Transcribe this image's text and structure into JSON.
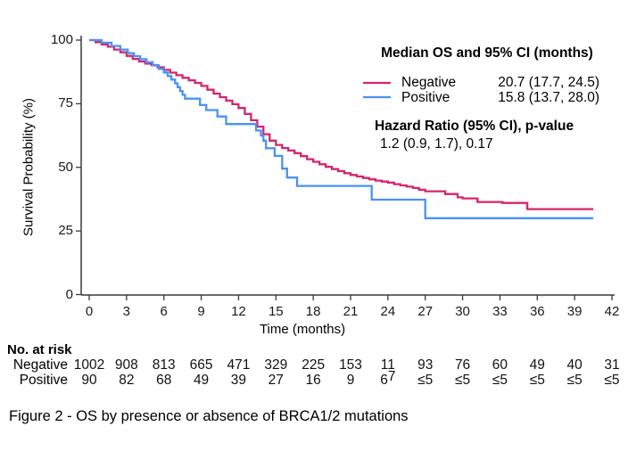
{
  "figure": {
    "caption": "Figure 2 - OS by presence or absence of BRCA1/2 mutations"
  },
  "chart_data": {
    "type": "line",
    "subtype": "kaplan-meier-step",
    "xlabel": "Time (months)",
    "ylabel": "Survival Probability (%)",
    "xlim": [
      0,
      42
    ],
    "ylim": [
      0,
      100
    ],
    "xticks": [
      0,
      3,
      6,
      9,
      12,
      15,
      18,
      21,
      24,
      27,
      30,
      33,
      36,
      39,
      42
    ],
    "yticks": [
      0,
      25,
      50,
      75,
      100
    ],
    "grid": false,
    "axis_color": "#3a3a3a",
    "legend": {
      "position": "top-right",
      "title": "Median OS and 95% CI (months)",
      "hazard_title": "Hazard Ratio (95% CI), p-value",
      "hazard_value": "1.2 (0.9, 1.7), 0.17"
    },
    "series": [
      {
        "name": "Negative",
        "color": "#D5256D",
        "median_os": "20.7 (17.7, 24.5)",
        "points": [
          [
            0,
            100
          ],
          [
            0.5,
            99.2
          ],
          [
            1,
            98.3
          ],
          [
            1.5,
            97.4
          ],
          [
            2,
            96.3
          ],
          [
            2.5,
            95.2
          ],
          [
            3,
            93.8
          ],
          [
            3.5,
            92.6
          ],
          [
            4,
            91.6
          ],
          [
            4.5,
            90.8
          ],
          [
            5,
            90.2
          ],
          [
            5.5,
            89.3
          ],
          [
            6,
            88.3
          ],
          [
            6.5,
            87.2
          ],
          [
            7,
            86.2
          ],
          [
            7.5,
            85.2
          ],
          [
            8,
            84.2
          ],
          [
            8.5,
            83.2
          ],
          [
            9,
            82
          ],
          [
            9.5,
            80.5
          ],
          [
            10,
            79
          ],
          [
            10.5,
            77.6
          ],
          [
            11,
            76.2
          ],
          [
            11.5,
            74.8
          ],
          [
            12,
            73.3
          ],
          [
            12.5,
            71
          ],
          [
            13,
            68.5
          ],
          [
            13.5,
            66
          ],
          [
            14,
            63
          ],
          [
            14.5,
            60.5
          ],
          [
            15,
            58.8
          ],
          [
            15.5,
            57.6
          ],
          [
            16,
            56.6
          ],
          [
            16.5,
            55.6
          ],
          [
            17,
            54.4
          ],
          [
            17.5,
            53.2
          ],
          [
            18,
            52.2
          ],
          [
            18.5,
            51.2
          ],
          [
            19,
            50.2
          ],
          [
            19.5,
            49.3
          ],
          [
            20,
            48.5
          ],
          [
            20.5,
            47.7
          ],
          [
            21,
            47
          ],
          [
            21.5,
            46.4
          ],
          [
            22,
            45.8
          ],
          [
            22.5,
            45.3
          ],
          [
            23,
            44.8
          ],
          [
            23.5,
            44.4
          ],
          [
            24,
            44
          ],
          [
            24.5,
            43.4
          ],
          [
            25,
            42.9
          ],
          [
            25.5,
            42.4
          ],
          [
            26,
            41.9
          ],
          [
            26.5,
            41.2
          ],
          [
            27,
            40.6
          ],
          [
            28.6,
            39.5
          ],
          [
            29.6,
            38.2
          ],
          [
            30,
            37.8
          ],
          [
            31.2,
            36.4
          ],
          [
            33.2,
            36
          ],
          [
            35.2,
            33.6
          ],
          [
            40.5,
            33.6
          ]
        ]
      },
      {
        "name": "Positive",
        "color": "#4992F4",
        "median_os": "15.8 (13.7, 28.0)",
        "points": [
          [
            0,
            100
          ],
          [
            1,
            99
          ],
          [
            1.8,
            97.7
          ],
          [
            2.5,
            96.3
          ],
          [
            3.1,
            94.9
          ],
          [
            3.6,
            93.7
          ],
          [
            4.1,
            92.5
          ],
          [
            4.6,
            91.3
          ],
          [
            5.1,
            90.1
          ],
          [
            5.6,
            88.7
          ],
          [
            6,
            87.3
          ],
          [
            6.3,
            85.9
          ],
          [
            6.6,
            84.5
          ],
          [
            6.9,
            83
          ],
          [
            7.1,
            81.5
          ],
          [
            7.3,
            80
          ],
          [
            7.5,
            78.5
          ],
          [
            7.7,
            77
          ],
          [
            8.9,
            74.5
          ],
          [
            9.4,
            72.5
          ],
          [
            10.3,
            70
          ],
          [
            11,
            67
          ],
          [
            13.4,
            64.5
          ],
          [
            13.8,
            62.5
          ],
          [
            14,
            60.5
          ],
          [
            14.2,
            57.5
          ],
          [
            14.9,
            54.5
          ],
          [
            15.5,
            49.5
          ],
          [
            15.9,
            46
          ],
          [
            16.7,
            42.7
          ],
          [
            22.7,
            37.3
          ],
          [
            27,
            30
          ],
          [
            40.5,
            30
          ]
        ]
      }
    ]
  },
  "risk_table": {
    "header": "No. at risk",
    "rows": [
      {
        "label": "Negative",
        "values": [
          "1002",
          "908",
          "813",
          "665",
          "471",
          "329",
          "225",
          "153",
          "11",
          "93",
          "76",
          "60",
          "49",
          "40",
          "31"
        ]
      },
      {
        "label": "Positive",
        "values": [
          "90",
          "82",
          "68",
          "49",
          "39",
          "27",
          "16",
          "9",
          "6^7",
          "≤5",
          "≤5",
          "≤5",
          "≤5",
          "≤5",
          "≤5"
        ]
      }
    ]
  }
}
